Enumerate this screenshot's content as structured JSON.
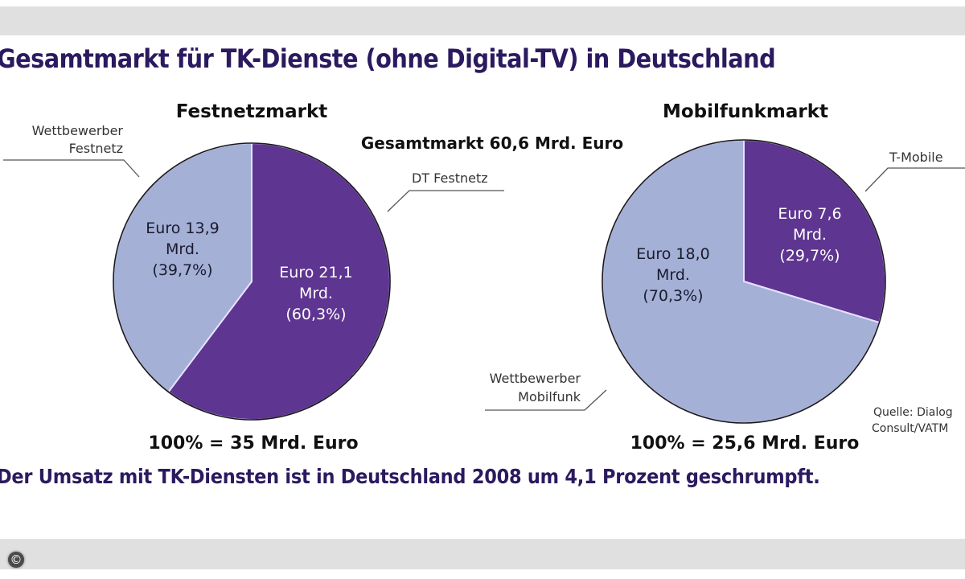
{
  "title": "Gesamtmarkt für TK-Dienste (ohne Digital-TV) in Deutschland",
  "footer": "Der Umsatz mit TK-Diensten ist in Deutschland 2008 um 4,1 Prozent geschrumpft.",
  "copyright_icon": "copyright-icon",
  "colors": {
    "dark": "#5e3590",
    "light": "#a4b0d6",
    "title": "#2b1a5f"
  },
  "chart_data": [
    {
      "type": "pie",
      "title": "Festnetzmarkt",
      "total_label": "100% = 35 Mrd. Euro",
      "total": 35,
      "unit": "Mrd. Euro",
      "slices": [
        {
          "name": "DT Festnetz",
          "value": 21.1,
          "percent": 60.3,
          "color": "#5e3590",
          "label_lines": [
            "Euro 21,1",
            "Mrd.",
            "(60,3%)"
          ],
          "text_color": "#ffffff"
        },
        {
          "name": "Wettbewerber Festnetz",
          "value": 13.9,
          "percent": 39.7,
          "color": "#a4b0d6",
          "label_lines": [
            "Euro 13,9",
            "Mrd.",
            "(39,7%)"
          ],
          "text_color": "#1a1a2e"
        }
      ],
      "callouts": [
        {
          "lines": [
            "Wettbewerber",
            "Festnetz"
          ]
        },
        {
          "lines": [
            "DT Festnetz"
          ]
        }
      ]
    },
    {
      "type": "pie",
      "title": "Mobilfunkmarkt",
      "total_label": "100% = 25,6 Mrd. Euro",
      "total": 25.6,
      "unit": "Mrd. Euro",
      "slices": [
        {
          "name": "T-Mobile",
          "value": 7.6,
          "percent": 29.7,
          "color": "#5e3590",
          "label_lines": [
            "Euro 7,6",
            "Mrd.",
            "(29,7%)"
          ],
          "text_color": "#ffffff"
        },
        {
          "name": "Wettbewerber Mobilfunk",
          "value": 18.0,
          "percent": 70.3,
          "color": "#a4b0d6",
          "label_lines": [
            "Euro 18,0",
            "Mrd.",
            "(70,3%)"
          ],
          "text_color": "#1a1a2e"
        }
      ],
      "callouts": [
        {
          "lines": [
            "T-Mobile"
          ]
        },
        {
          "lines": [
            "Wettbewerber",
            "Mobilfunk"
          ]
        }
      ]
    }
  ],
  "grand_total": "Gesamtmarkt 60,6 Mrd. Euro",
  "source_lines": [
    "Quelle: Dialog",
    "Consult/VATM"
  ]
}
